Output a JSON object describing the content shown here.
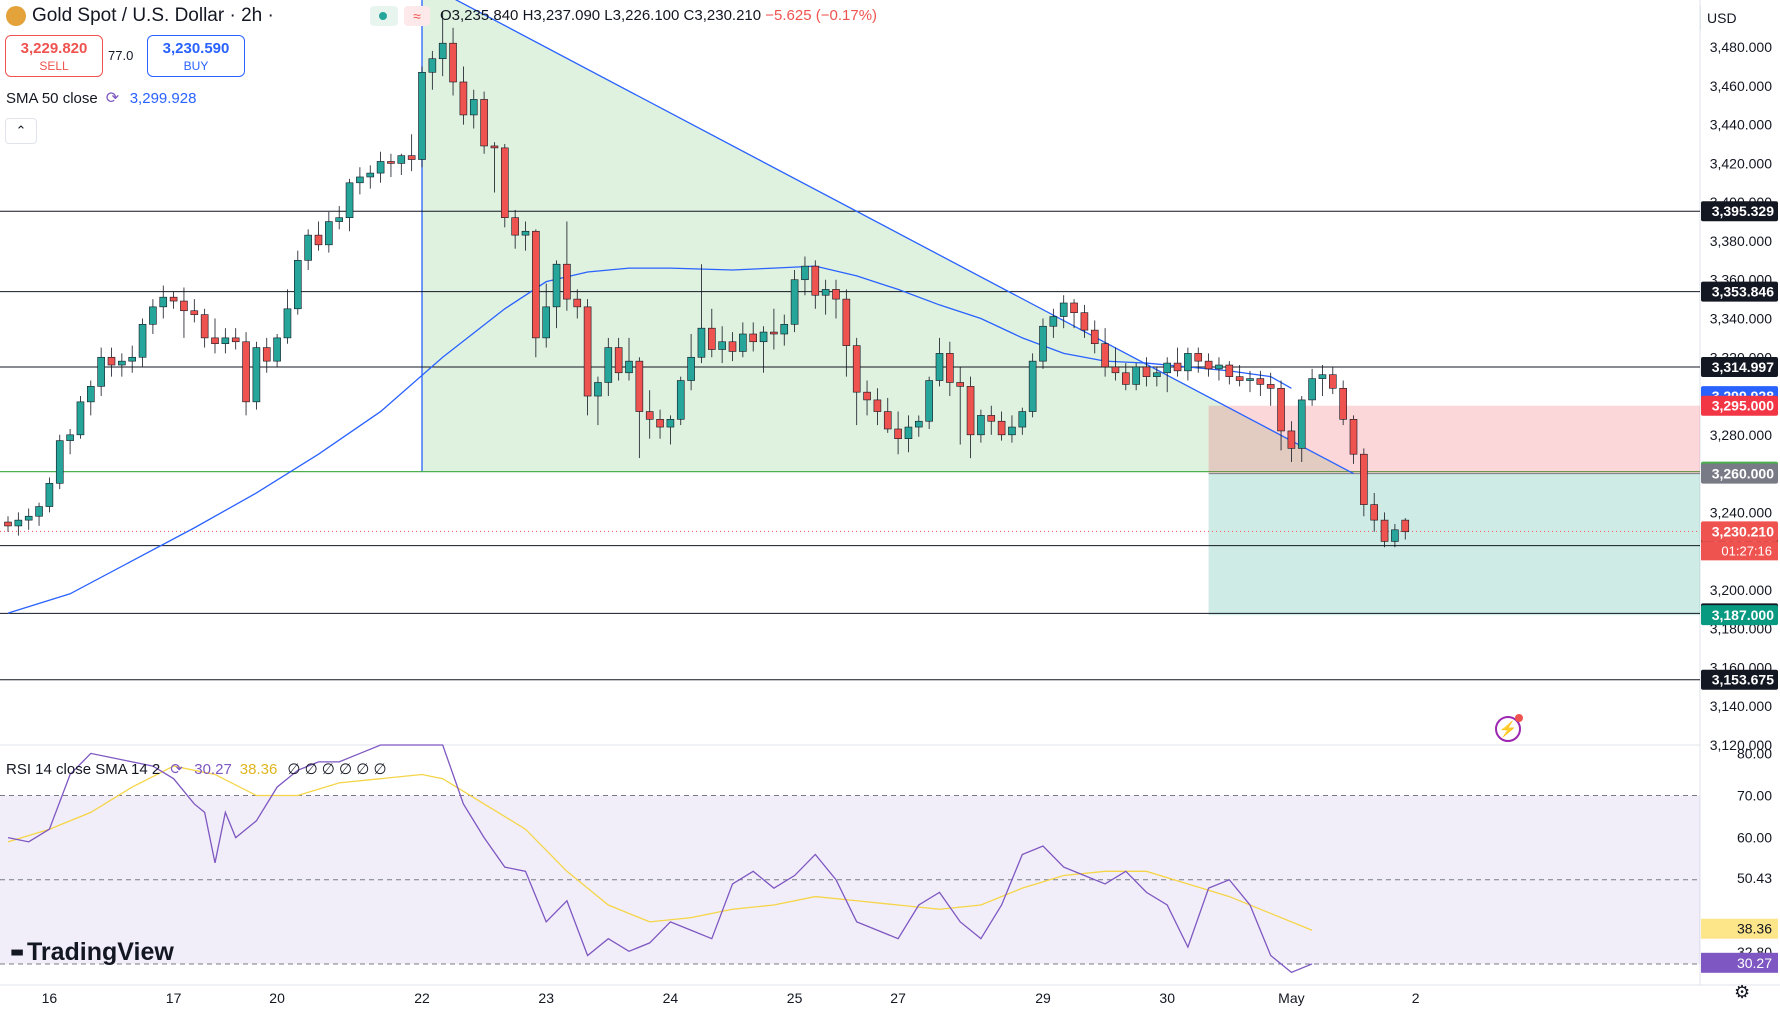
{
  "header": {
    "symbol": "Gold Spot / U.S. Dollar",
    "interval": "2h",
    "title_sep": " / ",
    "ohlc": "O3,235.840 H3,237.090 L3,226.100 C3,230.210",
    "change": "−5.625 (−0.17%)",
    "currency": "USD"
  },
  "trade": {
    "sell_price": "3,229.820",
    "sell_label": "SELL",
    "buy_price": "3,230.590",
    "buy_label": "BUY",
    "spread": "77.0"
  },
  "indicators": {
    "sma_label": "SMA 50 close",
    "sma_value": "3,299.928",
    "rsi_label": "RSI 14 close SMA 14 2",
    "rsi_value": "30.27",
    "rsi_sma_value": "38.36",
    "rsi_extra": "∅ ∅ ∅ ∅ ∅ ∅"
  },
  "brand": "TradingView",
  "colors": {
    "up": "#26a69a",
    "down": "#ef5350",
    "sma": "#2962ff",
    "rsi": "#7e57c2",
    "rsi_sma": "#f5d547"
  },
  "chart_data": {
    "type": "candlestick",
    "x_tick_labels": [
      {
        "i": 4,
        "label": "16"
      },
      {
        "i": 16,
        "label": "17"
      },
      {
        "i": 26,
        "label": "20"
      },
      {
        "i": 40,
        "label": "22"
      },
      {
        "i": 52,
        "label": "23"
      },
      {
        "i": 64,
        "label": "24"
      },
      {
        "i": 76,
        "label": "25"
      },
      {
        "i": 86,
        "label": "27"
      },
      {
        "i": 100,
        "label": "29"
      },
      {
        "i": 112,
        "label": "30"
      },
      {
        "i": 124,
        "label": "May"
      },
      {
        "i": 136,
        "label": "2"
      }
    ],
    "ylim": [
      3120,
      3495
    ],
    "y_ticks": [
      3120,
      3140,
      3160,
      3180,
      3200,
      3220,
      3240,
      3260,
      3280,
      3300,
      3320,
      3340,
      3360,
      3380,
      3400,
      3420,
      3440,
      3460,
      3480
    ],
    "y_tick_labels": [
      "3,120.000",
      "3,140.000",
      "3,160.000",
      "3,180.000",
      "3,200.000",
      "3,220.000",
      "3,240.000",
      "3,260.000",
      "3,280.000",
      "3,300.000",
      "3,320.000",
      "3,340.000",
      "3,360.000",
      "3,380.000",
      "3,400.000",
      "3,420.000",
      "3,440.000",
      "3,460.000",
      "3,480.000"
    ],
    "horizontal_levels": [
      {
        "value": 3395.329,
        "label": "3,395.329"
      },
      {
        "value": 3353.846,
        "label": "3,353.846"
      },
      {
        "value": 3314.997,
        "label": "3,314.997"
      },
      {
        "value": 3222.813,
        "label": "3,222.813"
      },
      {
        "value": 3187.915,
        "label": "3,187.915"
      },
      {
        "value": 3153.675,
        "label": "3,153.675"
      }
    ],
    "price_badges": [
      {
        "value": 3299.928,
        "label": "3,299.928",
        "color": "#2962ff"
      },
      {
        "value": 3295.0,
        "label": "3,295.000",
        "color": "#f23645"
      },
      {
        "value": 3261.004,
        "label": "3,261.004",
        "color": "#4caf50"
      },
      {
        "value": 3260.0,
        "label": "3,260.000",
        "color": "#787b86"
      },
      {
        "value": 3230.21,
        "label": "3,230.210",
        "color": "#ef5350",
        "countdown": "01:27:16"
      },
      {
        "value": 3187.0,
        "label": "3,187.000",
        "color": "#089981"
      }
    ],
    "ohlc": [
      [
        3235,
        3238,
        3230,
        3233
      ],
      [
        3233,
        3240,
        3228,
        3236
      ],
      [
        3236,
        3242,
        3231,
        3238
      ],
      [
        3238,
        3245,
        3233,
        3243
      ],
      [
        3243,
        3258,
        3240,
        3255
      ],
      [
        3255,
        3280,
        3252,
        3277
      ],
      [
        3277,
        3283,
        3270,
        3280
      ],
      [
        3280,
        3300,
        3278,
        3297
      ],
      [
        3297,
        3308,
        3290,
        3305
      ],
      [
        3305,
        3325,
        3300,
        3320
      ],
      [
        3320,
        3325,
        3310,
        3316
      ],
      [
        3316,
        3322,
        3310,
        3318
      ],
      [
        3318,
        3326,
        3312,
        3320
      ],
      [
        3320,
        3340,
        3315,
        3337
      ],
      [
        3337,
        3350,
        3332,
        3346
      ],
      [
        3346,
        3357,
        3340,
        3351
      ],
      [
        3351,
        3354,
        3345,
        3349
      ],
      [
        3349,
        3356,
        3330,
        3344
      ],
      [
        3344,
        3350,
        3338,
        3342
      ],
      [
        3342,
        3345,
        3325,
        3330
      ],
      [
        3330,
        3340,
        3322,
        3327
      ],
      [
        3327,
        3335,
        3322,
        3330
      ],
      [
        3330,
        3335,
        3324,
        3328
      ],
      [
        3328,
        3333,
        3290,
        3297
      ],
      [
        3297,
        3328,
        3293,
        3325
      ],
      [
        3325,
        3330,
        3312,
        3318
      ],
      [
        3318,
        3332,
        3315,
        3330
      ],
      [
        3330,
        3355,
        3327,
        3345
      ],
      [
        3345,
        3375,
        3342,
        3370
      ],
      [
        3370,
        3386,
        3365,
        3383
      ],
      [
        3383,
        3390,
        3375,
        3378
      ],
      [
        3378,
        3395,
        3374,
        3390
      ],
      [
        3390,
        3398,
        3386,
        3392
      ],
      [
        3392,
        3412,
        3385,
        3410
      ],
      [
        3410,
        3418,
        3404,
        3413
      ],
      [
        3413,
        3419,
        3407,
        3415
      ],
      [
        3415,
        3426,
        3410,
        3421
      ],
      [
        3421,
        3425,
        3413,
        3420
      ],
      [
        3420,
        3425,
        3414,
        3424
      ],
      [
        3424,
        3435,
        3416,
        3422
      ],
      [
        3422,
        3470,
        3418,
        3467
      ],
      [
        3467,
        3478,
        3458,
        3474
      ],
      [
        3474,
        3498,
        3465,
        3482
      ],
      [
        3482,
        3490,
        3455,
        3462
      ],
      [
        3462,
        3470,
        3440,
        3445
      ],
      [
        3445,
        3458,
        3438,
        3453
      ],
      [
        3453,
        3457,
        3425,
        3429
      ],
      [
        3429,
        3431,
        3405,
        3428
      ],
      [
        3428,
        3430,
        3387,
        3392
      ],
      [
        3392,
        3396,
        3376,
        3383
      ],
      [
        3383,
        3390,
        3375,
        3385
      ],
      [
        3385,
        3386,
        3320,
        3330
      ],
      [
        3330,
        3358,
        3325,
        3346
      ],
      [
        3346,
        3370,
        3335,
        3368
      ],
      [
        3368,
        3390,
        3344,
        3350
      ],
      [
        3350,
        3355,
        3340,
        3346
      ],
      [
        3346,
        3350,
        3290,
        3300
      ],
      [
        3300,
        3310,
        3285,
        3307
      ],
      [
        3307,
        3330,
        3300,
        3325
      ],
      [
        3325,
        3330,
        3308,
        3312
      ],
      [
        3312,
        3330,
        3308,
        3318
      ],
      [
        3318,
        3320,
        3268,
        3292
      ],
      [
        3292,
        3303,
        3278,
        3288
      ],
      [
        3288,
        3293,
        3278,
        3284
      ],
      [
        3284,
        3290,
        3275,
        3288
      ],
      [
        3288,
        3310,
        3285,
        3308
      ],
      [
        3308,
        3332,
        3303,
        3320
      ],
      [
        3320,
        3368,
        3317,
        3335
      ],
      [
        3335,
        3345,
        3320,
        3324
      ],
      [
        3324,
        3336,
        3317,
        3328
      ],
      [
        3328,
        3333,
        3318,
        3323
      ],
      [
        3323,
        3338,
        3320,
        3332
      ],
      [
        3332,
        3338,
        3323,
        3328
      ],
      [
        3328,
        3336,
        3312,
        3333
      ],
      [
        3333,
        3345,
        3324,
        3332
      ],
      [
        3332,
        3342,
        3326,
        3337
      ],
      [
        3337,
        3365,
        3333,
        3360
      ],
      [
        3360,
        3372,
        3352,
        3367
      ],
      [
        3367,
        3370,
        3345,
        3352
      ],
      [
        3352,
        3360,
        3342,
        3355
      ],
      [
        3355,
        3360,
        3340,
        3350
      ],
      [
        3350,
        3355,
        3310,
        3326
      ],
      [
        3326,
        3330,
        3285,
        3302
      ],
      [
        3302,
        3308,
        3290,
        3298
      ],
      [
        3298,
        3304,
        3285,
        3292
      ],
      [
        3292,
        3299,
        3281,
        3283
      ],
      [
        3283,
        3292,
        3270,
        3278
      ],
      [
        3278,
        3290,
        3271,
        3284
      ],
      [
        3284,
        3290,
        3279,
        3287
      ],
      [
        3287,
        3310,
        3283,
        3308
      ],
      [
        3308,
        3330,
        3305,
        3322
      ],
      [
        3322,
        3328,
        3300,
        3307
      ],
      [
        3307,
        3315,
        3275,
        3305
      ],
      [
        3305,
        3310,
        3268,
        3280
      ],
      [
        3280,
        3293,
        3276,
        3290
      ],
      [
        3290,
        3295,
        3280,
        3287
      ],
      [
        3287,
        3292,
        3277,
        3280
      ],
      [
        3280,
        3290,
        3276,
        3284
      ],
      [
        3284,
        3294,
        3280,
        3292
      ],
      [
        3292,
        3322,
        3289,
        3318
      ],
      [
        3318,
        3340,
        3314,
        3336
      ],
      [
        3336,
        3345,
        3330,
        3341
      ],
      [
        3341,
        3352,
        3335,
        3348
      ],
      [
        3348,
        3350,
        3335,
        3343
      ],
      [
        3343,
        3347,
        3330,
        3334
      ],
      [
        3334,
        3339,
        3322,
        3327
      ],
      [
        3327,
        3335,
        3310,
        3315
      ],
      [
        3315,
        3325,
        3308,
        3312
      ],
      [
        3312,
        3317,
        3303,
        3306
      ],
      [
        3306,
        3317,
        3303,
        3315
      ],
      [
        3315,
        3320,
        3305,
        3310
      ],
      [
        3310,
        3315,
        3305,
        3312
      ],
      [
        3312,
        3320,
        3302,
        3317
      ],
      [
        3317,
        3325,
        3310,
        3313
      ],
      [
        3313,
        3325,
        3308,
        3322
      ],
      [
        3322,
        3325,
        3312,
        3318
      ],
      [
        3318,
        3322,
        3310,
        3314
      ],
      [
        3314,
        3320,
        3308,
        3316
      ],
      [
        3316,
        3318,
        3306,
        3310
      ],
      [
        3310,
        3316,
        3305,
        3308
      ],
      [
        3308,
        3313,
        3302,
        3309
      ],
      [
        3309,
        3313,
        3300,
        3306
      ],
      [
        3306,
        3312,
        3295,
        3304
      ],
      [
        3304,
        3308,
        3272,
        3282
      ],
      [
        3282,
        3287,
        3266,
        3273
      ],
      [
        3273,
        3300,
        3266,
        3298
      ],
      [
        3298,
        3314,
        3295,
        3309
      ],
      [
        3309,
        3316,
        3300,
        3311
      ],
      [
        3311,
        3315,
        3301,
        3304
      ],
      [
        3304,
        3308,
        3285,
        3288
      ],
      [
        3288,
        3290,
        3265,
        3270
      ],
      [
        3270,
        3273,
        3238,
        3244
      ],
      [
        3244,
        3250,
        3230,
        3236
      ],
      [
        3236,
        3240,
        3222,
        3225
      ],
      [
        3225,
        3234,
        3222,
        3231
      ],
      [
        3236,
        3237,
        3226,
        3230
      ]
    ],
    "sma50": [
      [
        0,
        3188
      ],
      [
        6,
        3198
      ],
      [
        12,
        3215
      ],
      [
        18,
        3232
      ],
      [
        24,
        3250
      ],
      [
        30,
        3270
      ],
      [
        36,
        3292
      ],
      [
        42,
        3320
      ],
      [
        48,
        3345
      ],
      [
        52,
        3359
      ],
      [
        56,
        3364
      ],
      [
        60,
        3366
      ],
      [
        64,
        3366
      ],
      [
        70,
        3365
      ],
      [
        74,
        3366
      ],
      [
        78,
        3367
      ],
      [
        82,
        3362
      ],
      [
        86,
        3355
      ],
      [
        90,
        3347
      ],
      [
        94,
        3340
      ],
      [
        98,
        3330
      ],
      [
        102,
        3322
      ],
      [
        106,
        3318
      ],
      [
        110,
        3317
      ],
      [
        114,
        3315
      ],
      [
        118,
        3313
      ],
      [
        122,
        3310
      ],
      [
        124,
        3304
      ]
    ],
    "trendline": [
      [
        42,
        3508
      ],
      [
        130,
        3260
      ]
    ],
    "triangle_zone": {
      "top_start": [
        40,
        3508
      ],
      "base_value": 3261,
      "base_from": 40,
      "base_to": 130
    },
    "short_position": {
      "from_i": 116,
      "entry": 3260,
      "stop": 3295,
      "target": 3187
    },
    "rsi": {
      "ylim": [
        25,
        82
      ],
      "tick_labels": [
        "80.00",
        "70.00",
        "60.00",
        "50.43",
        "38.36",
        "32.80",
        "30.27"
      ],
      "levels": [
        70,
        50,
        30
      ],
      "values": [
        [
          0,
          60
        ],
        [
          2,
          59
        ],
        [
          4,
          62
        ],
        [
          6,
          75
        ],
        [
          8,
          80
        ],
        [
          10,
          79
        ],
        [
          12,
          78
        ],
        [
          14,
          77
        ],
        [
          16,
          74
        ],
        [
          18,
          68
        ],
        [
          19,
          66
        ],
        [
          20,
          54
        ],
        [
          21,
          66
        ],
        [
          22,
          60
        ],
        [
          24,
          64
        ],
        [
          26,
          72
        ],
        [
          28,
          76
        ],
        [
          30,
          78
        ],
        [
          32,
          78
        ],
        [
          34,
          80
        ],
        [
          36,
          82
        ],
        [
          38,
          82
        ],
        [
          40,
          82
        ],
        [
          42,
          82
        ],
        [
          44,
          68
        ],
        [
          46,
          60
        ],
        [
          48,
          53
        ],
        [
          50,
          52
        ],
        [
          52,
          40
        ],
        [
          54,
          45
        ],
        [
          56,
          32
        ],
        [
          58,
          36
        ],
        [
          60,
          33
        ],
        [
          62,
          35
        ],
        [
          64,
          40
        ],
        [
          66,
          38
        ],
        [
          68,
          36
        ],
        [
          70,
          49
        ],
        [
          72,
          52
        ],
        [
          74,
          48
        ],
        [
          76,
          51
        ],
        [
          78,
          56
        ],
        [
          80,
          50
        ],
        [
          82,
          40
        ],
        [
          84,
          38
        ],
        [
          86,
          36
        ],
        [
          88,
          44
        ],
        [
          90,
          47
        ],
        [
          92,
          40
        ],
        [
          94,
          36
        ],
        [
          96,
          44
        ],
        [
          98,
          56
        ],
        [
          100,
          58
        ],
        [
          102,
          53
        ],
        [
          104,
          51
        ],
        [
          106,
          49
        ],
        [
          108,
          52
        ],
        [
          110,
          47
        ],
        [
          112,
          44
        ],
        [
          114,
          34
        ],
        [
          116,
          48
        ],
        [
          118,
          50
        ],
        [
          120,
          44
        ],
        [
          122,
          32
        ],
        [
          124,
          28
        ],
        [
          126,
          30
        ]
      ],
      "sma": [
        [
          0,
          59
        ],
        [
          4,
          62
        ],
        [
          8,
          66
        ],
        [
          12,
          72
        ],
        [
          16,
          77
        ],
        [
          20,
          75
        ],
        [
          24,
          70
        ],
        [
          28,
          70
        ],
        [
          32,
          73
        ],
        [
          36,
          74
        ],
        [
          40,
          75
        ],
        [
          42,
          74
        ],
        [
          46,
          68
        ],
        [
          50,
          62
        ],
        [
          54,
          52
        ],
        [
          58,
          44
        ],
        [
          62,
          40
        ],
        [
          66,
          41
        ],
        [
          70,
          43
        ],
        [
          74,
          44
        ],
        [
          78,
          46
        ],
        [
          82,
          45
        ],
        [
          86,
          44
        ],
        [
          90,
          43
        ],
        [
          94,
          44
        ],
        [
          98,
          48
        ],
        [
          102,
          51
        ],
        [
          106,
          52
        ],
        [
          110,
          52
        ],
        [
          114,
          49
        ],
        [
          118,
          46
        ],
        [
          122,
          42
        ],
        [
          126,
          38
        ]
      ]
    }
  }
}
